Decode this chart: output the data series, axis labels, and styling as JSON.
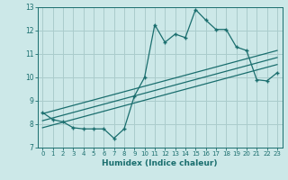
{
  "title": "",
  "xlabel": "Humidex (Indice chaleur)",
  "ylabel": "",
  "bg_color": "#cce8e8",
  "line_color": "#1a6e6e",
  "grid_color": "#aacccc",
  "xlim": [
    -0.5,
    23.5
  ],
  "ylim": [
    7,
    13
  ],
  "yticks": [
    7,
    8,
    9,
    10,
    11,
    12,
    13
  ],
  "xticks": [
    0,
    1,
    2,
    3,
    4,
    5,
    6,
    7,
    8,
    9,
    10,
    11,
    12,
    13,
    14,
    15,
    16,
    17,
    18,
    19,
    20,
    21,
    22,
    23
  ],
  "main_x": [
    0,
    1,
    2,
    3,
    4,
    5,
    6,
    7,
    8,
    9,
    10,
    11,
    12,
    13,
    14,
    15,
    16,
    17,
    18,
    19,
    20,
    21,
    22,
    23
  ],
  "main_y": [
    8.5,
    8.2,
    8.1,
    7.85,
    7.8,
    7.8,
    7.8,
    7.4,
    7.8,
    9.2,
    10.0,
    12.25,
    11.5,
    11.85,
    11.7,
    12.9,
    12.45,
    12.05,
    12.05,
    11.3,
    11.15,
    9.9,
    9.85,
    10.2
  ],
  "trend1_x": [
    0,
    23
  ],
  "trend1_y": [
    8.45,
    11.15
  ],
  "trend2_x": [
    0,
    23
  ],
  "trend2_y": [
    8.15,
    10.85
  ],
  "trend3_x": [
    0,
    23
  ],
  "trend3_y": [
    7.85,
    10.55
  ]
}
